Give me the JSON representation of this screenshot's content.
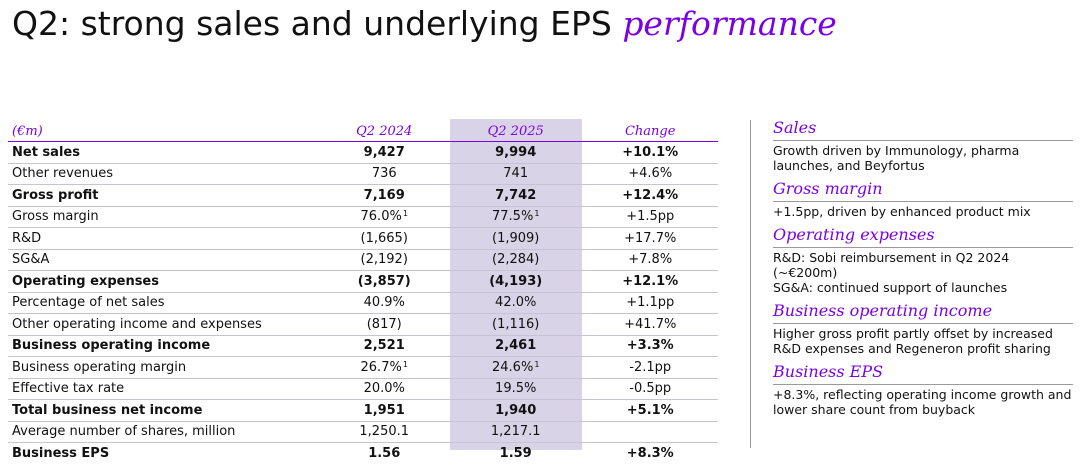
{
  "title": {
    "main": "Q2: strong sales and underlying EPS",
    "accent": "performance"
  },
  "table": {
    "headers": [
      "(€m)",
      "Q2 2024",
      "Q2 2025",
      "Change"
    ],
    "rows": [
      {
        "label": "Net sales",
        "q2_2024": "9,427",
        "q2_2025": "9,994",
        "change": "+10.1%",
        "bold": true
      },
      {
        "label": "Other revenues",
        "q2_2024": "736",
        "q2_2025": "741",
        "change": "+4.6%"
      },
      {
        "label": "Gross profit",
        "q2_2024": "7,169",
        "q2_2025": "7,742",
        "change": "+12.4%",
        "bold": true
      },
      {
        "label": "Gross margin",
        "q2_2024": "76.0%",
        "q2_2025": "77.5%",
        "change": "+1.5pp",
        "sup": "1"
      },
      {
        "label": "R&D",
        "q2_2024": "(1,665)",
        "q2_2025": "(1,909)",
        "change": "+17.7%"
      },
      {
        "label": "SG&A",
        "q2_2024": "(2,192)",
        "q2_2025": "(2,284)",
        "change": "+7.8%"
      },
      {
        "label": "Operating expenses",
        "q2_2024": "(3,857)",
        "q2_2025": "(4,193)",
        "change": "+12.1%",
        "bold": true
      },
      {
        "label": "Percentage of net sales",
        "q2_2024": "40.9%",
        "q2_2025": "42.0%",
        "change": "+1.1pp"
      },
      {
        "label": "Other operating income and expenses",
        "q2_2024": "(817)",
        "q2_2025": "(1,116)",
        "change": "+41.7%"
      },
      {
        "label": "Business operating income",
        "q2_2024": "2,521",
        "q2_2025": "2,461",
        "change": "+3.3%",
        "bold": true
      },
      {
        "label": "Business operating margin",
        "q2_2024": "26.7%",
        "q2_2025": "24.6%",
        "change": "-2.1pp",
        "sup": "1"
      },
      {
        "label": "Effective tax rate",
        "q2_2024": "20.0%",
        "q2_2025": "19.5%",
        "change": "-0.5pp"
      },
      {
        "label": "Total business net income",
        "q2_2024": "1,951",
        "q2_2025": "1,940",
        "change": "+5.1%",
        "bold": true
      },
      {
        "label": "Average number of shares, million",
        "q2_2024": "1,250.1",
        "q2_2025": "1,217.1",
        "change": ""
      },
      {
        "label": "Business EPS",
        "q2_2024": "1.56",
        "q2_2025": "1.59",
        "change": "+8.3%",
        "bold": true
      }
    ]
  },
  "notes": [
    {
      "heading": "Sales",
      "lines": [
        "Growth driven by Immunology, pharma launches, and Beyfortus"
      ]
    },
    {
      "heading": "Gross margin",
      "lines": [
        "+1.5pp, driven by enhanced product mix"
      ]
    },
    {
      "heading": "Operating expenses",
      "lines": [
        "R&D: Sobi reimbursement in Q2 2024 (~€200m)",
        "SG&A: continued support of launches"
      ]
    },
    {
      "heading": "Business operating income",
      "lines": [
        "Higher gross profit partly offset by increased R&D expenses and Regeneron profit sharing"
      ]
    },
    {
      "heading": "Business EPS",
      "lines": [
        "+8.3%, reflecting operating income growth and lower share count from buyback"
      ]
    }
  ],
  "colors": {
    "accent": "#7a00e6",
    "highlight_column": "#d8d3e6"
  }
}
